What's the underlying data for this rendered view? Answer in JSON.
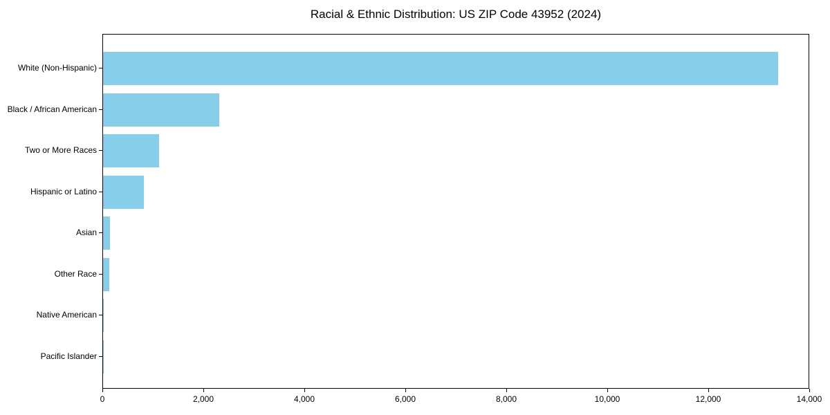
{
  "title": "Racial & Ethnic Distribution: US ZIP Code 43952 (2024)",
  "colors": {
    "bar": "#87CEEB",
    "axis": "#000000",
    "background": "#FFFFFF",
    "text": "#000000"
  },
  "chart_data": {
    "type": "bar",
    "orientation": "horizontal",
    "title": "Racial & Ethnic Distribution: US ZIP Code 43952 (2024)",
    "categories": [
      "White (Non-Hispanic)",
      "Black / African American",
      "Two or More Races",
      "Hispanic or Latino",
      "Asian",
      "Other Race",
      "Native American",
      "Pacific Islander"
    ],
    "values": [
      13370,
      2300,
      1110,
      810,
      140,
      120,
      20,
      5
    ],
    "xlabel": "",
    "ylabel": "",
    "xlim": [
      0,
      14000
    ],
    "xticks": [
      0,
      2000,
      4000,
      6000,
      8000,
      10000,
      12000,
      14000
    ],
    "xtick_labels": [
      "0",
      "2,000",
      "4,000",
      "6,000",
      "8,000",
      "10,000",
      "12,000",
      "14,000"
    ],
    "grid": false,
    "legend": false,
    "bar_color": "#87CEEB",
    "categories_top_to_bottom": true
  }
}
